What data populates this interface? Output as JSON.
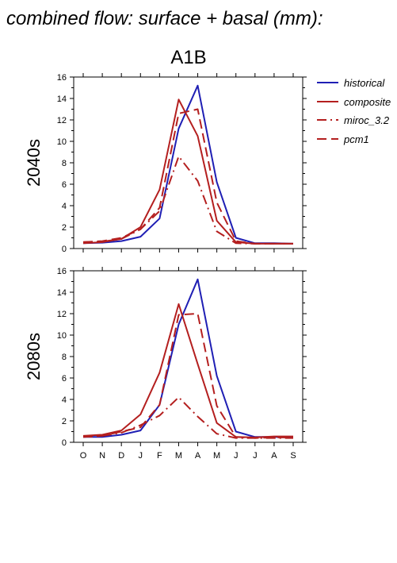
{
  "figure_title": "combined flow: surface + basal (mm):",
  "scenario_title": "A1B",
  "colors": {
    "historical": "#1f1fb4",
    "composite": "#b41f1f",
    "miroc_3.2": "#b41f1f",
    "pcm1": "#b41f1f"
  },
  "legend": [
    {
      "name": "historical",
      "style": "solid"
    },
    {
      "name": "composite",
      "style": "solid"
    },
    {
      "name": "miroc_3.2",
      "style": "dashdot"
    },
    {
      "name": "pcm1",
      "style": "dashed"
    }
  ],
  "chart_data": [
    {
      "type": "line",
      "title": "",
      "ylabel": "2040s",
      "xlabel": "",
      "categories": [
        "O",
        "N",
        "D",
        "J",
        "F",
        "M",
        "A",
        "M",
        "J",
        "J",
        "A",
        "S"
      ],
      "ylim": [
        0,
        16
      ],
      "yticks": [
        0,
        2,
        4,
        6,
        8,
        10,
        12,
        14,
        16
      ],
      "series": [
        {
          "name": "historical",
          "values": [
            0.5,
            0.55,
            0.7,
            1.1,
            2.8,
            11.2,
            15.2,
            6.2,
            1.0,
            0.5,
            0.5,
            0.45
          ]
        },
        {
          "name": "composite",
          "values": [
            0.5,
            0.6,
            0.9,
            2.0,
            5.5,
            13.9,
            10.5,
            2.6,
            0.6,
            0.45,
            0.45,
            0.45
          ]
        },
        {
          "name": "miroc_3.2",
          "values": [
            0.6,
            0.65,
            0.9,
            1.8,
            3.5,
            8.6,
            6.3,
            1.6,
            0.5,
            0.45,
            0.45,
            0.45
          ]
        },
        {
          "name": "pcm1",
          "values": [
            0.6,
            0.7,
            1.0,
            1.8,
            3.8,
            12.6,
            13.0,
            4.3,
            0.7,
            0.45,
            0.45,
            0.45
          ]
        }
      ]
    },
    {
      "type": "line",
      "title": "",
      "ylabel": "2080s",
      "xlabel": "",
      "categories": [
        "O",
        "N",
        "D",
        "J",
        "F",
        "M",
        "A",
        "M",
        "J",
        "J",
        "A",
        "S"
      ],
      "ylim": [
        0,
        16
      ],
      "yticks": [
        0,
        2,
        4,
        6,
        8,
        10,
        12,
        14,
        16
      ],
      "series": [
        {
          "name": "historical",
          "values": [
            0.5,
            0.5,
            0.7,
            1.1,
            3.5,
            11.0,
            15.2,
            6.2,
            1.0,
            0.5,
            0.5,
            0.45
          ]
        },
        {
          "name": "composite",
          "values": [
            0.6,
            0.7,
            1.1,
            2.6,
            6.5,
            12.9,
            7.3,
            1.8,
            0.5,
            0.45,
            0.55,
            0.55
          ]
        },
        {
          "name": "miroc_3.2",
          "values": [
            0.5,
            0.6,
            0.9,
            1.6,
            2.5,
            4.2,
            2.4,
            0.8,
            0.4,
            0.4,
            0.4,
            0.4
          ]
        },
        {
          "name": "pcm1",
          "values": [
            0.5,
            0.6,
            1.0,
            1.4,
            3.5,
            11.9,
            12.0,
            3.4,
            0.5,
            0.4,
            0.45,
            0.45
          ]
        }
      ]
    }
  ]
}
